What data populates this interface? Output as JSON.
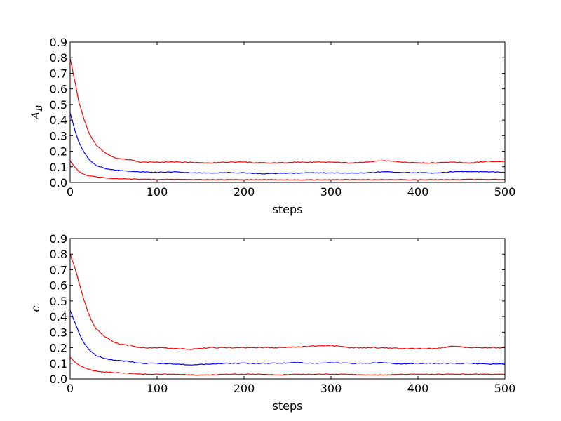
{
  "chart_data": [
    {
      "type": "line",
      "xlabel": "steps",
      "ylabel": "A",
      "ylabel_sub": "B",
      "xlim": [
        0,
        500
      ],
      "ylim": [
        0,
        0.9
      ],
      "x_ticks": [
        "0",
        "100",
        "200",
        "300",
        "400",
        "500"
      ],
      "y_ticks": [
        "0.0",
        "0.1",
        "0.2",
        "0.3",
        "0.4",
        "0.5",
        "0.6",
        "0.7",
        "0.8",
        "0.9"
      ],
      "x": [
        0,
        5,
        10,
        15,
        20,
        25,
        30,
        40,
        50,
        60,
        70,
        80,
        90,
        100,
        120,
        140,
        160,
        180,
        200,
        220,
        240,
        260,
        280,
        300,
        320,
        340,
        360,
        380,
        400,
        420,
        440,
        460,
        480,
        500
      ],
      "series": [
        {
          "color": "#ff0000",
          "values": [
            0.8,
            0.66,
            0.52,
            0.42,
            0.34,
            0.28,
            0.24,
            0.19,
            0.16,
            0.15,
            0.145,
            0.13,
            0.13,
            0.13,
            0.13,
            0.13,
            0.125,
            0.13,
            0.13,
            0.125,
            0.125,
            0.13,
            0.13,
            0.13,
            0.125,
            0.13,
            0.14,
            0.13,
            0.125,
            0.125,
            0.13,
            0.125,
            0.135,
            0.135
          ]
        },
        {
          "color": "#0000ff",
          "values": [
            0.45,
            0.34,
            0.26,
            0.2,
            0.16,
            0.13,
            0.11,
            0.09,
            0.08,
            0.075,
            0.07,
            0.068,
            0.066,
            0.065,
            0.068,
            0.062,
            0.06,
            0.063,
            0.062,
            0.055,
            0.058,
            0.06,
            0.062,
            0.06,
            0.06,
            0.062,
            0.068,
            0.065,
            0.062,
            0.06,
            0.068,
            0.07,
            0.068,
            0.065
          ]
        },
        {
          "color": "#ff0000",
          "values": [
            0.14,
            0.1,
            0.07,
            0.055,
            0.045,
            0.04,
            0.035,
            0.03,
            0.025,
            0.023,
            0.022,
            0.021,
            0.02,
            0.02,
            0.02,
            0.018,
            0.018,
            0.018,
            0.018,
            0.018,
            0.018,
            0.017,
            0.017,
            0.017,
            0.018,
            0.018,
            0.018,
            0.018,
            0.017,
            0.018,
            0.018,
            0.02,
            0.02,
            0.02
          ]
        }
      ]
    },
    {
      "type": "line",
      "xlabel": "steps",
      "ylabel": "ϵ",
      "xlim": [
        0,
        500
      ],
      "ylim": [
        0,
        0.9
      ],
      "x_ticks": [
        "0",
        "100",
        "200",
        "300",
        "400",
        "500"
      ],
      "y_ticks": [
        "0.0",
        "0.1",
        "0.2",
        "0.3",
        "0.4",
        "0.5",
        "0.6",
        "0.7",
        "0.8",
        "0.9"
      ],
      "x": [
        0,
        5,
        10,
        15,
        20,
        25,
        30,
        40,
        50,
        60,
        70,
        80,
        90,
        100,
        120,
        140,
        160,
        180,
        200,
        220,
        240,
        260,
        280,
        300,
        320,
        340,
        360,
        380,
        400,
        420,
        440,
        460,
        480,
        500
      ],
      "series": [
        {
          "color": "#ff0000",
          "values": [
            0.8,
            0.72,
            0.62,
            0.52,
            0.44,
            0.37,
            0.32,
            0.27,
            0.235,
            0.22,
            0.215,
            0.2,
            0.2,
            0.2,
            0.195,
            0.19,
            0.2,
            0.2,
            0.2,
            0.2,
            0.2,
            0.205,
            0.21,
            0.215,
            0.2,
            0.2,
            0.2,
            0.195,
            0.195,
            0.195,
            0.21,
            0.2,
            0.2,
            0.2
          ]
        },
        {
          "color": "#0000ff",
          "values": [
            0.44,
            0.37,
            0.3,
            0.24,
            0.2,
            0.17,
            0.15,
            0.13,
            0.12,
            0.115,
            0.11,
            0.1,
            0.1,
            0.1,
            0.095,
            0.09,
            0.095,
            0.1,
            0.1,
            0.1,
            0.1,
            0.105,
            0.1,
            0.105,
            0.1,
            0.1,
            0.105,
            0.095,
            0.1,
            0.1,
            0.1,
            0.1,
            0.095,
            0.095
          ]
        },
        {
          "color": "#ff0000",
          "values": [
            0.14,
            0.11,
            0.09,
            0.075,
            0.065,
            0.055,
            0.05,
            0.045,
            0.04,
            0.038,
            0.035,
            0.032,
            0.03,
            0.03,
            0.03,
            0.025,
            0.025,
            0.03,
            0.03,
            0.03,
            0.025,
            0.03,
            0.03,
            0.03,
            0.03,
            0.025,
            0.025,
            0.03,
            0.03,
            0.03,
            0.03,
            0.03,
            0.03,
            0.03
          ]
        }
      ]
    }
  ]
}
